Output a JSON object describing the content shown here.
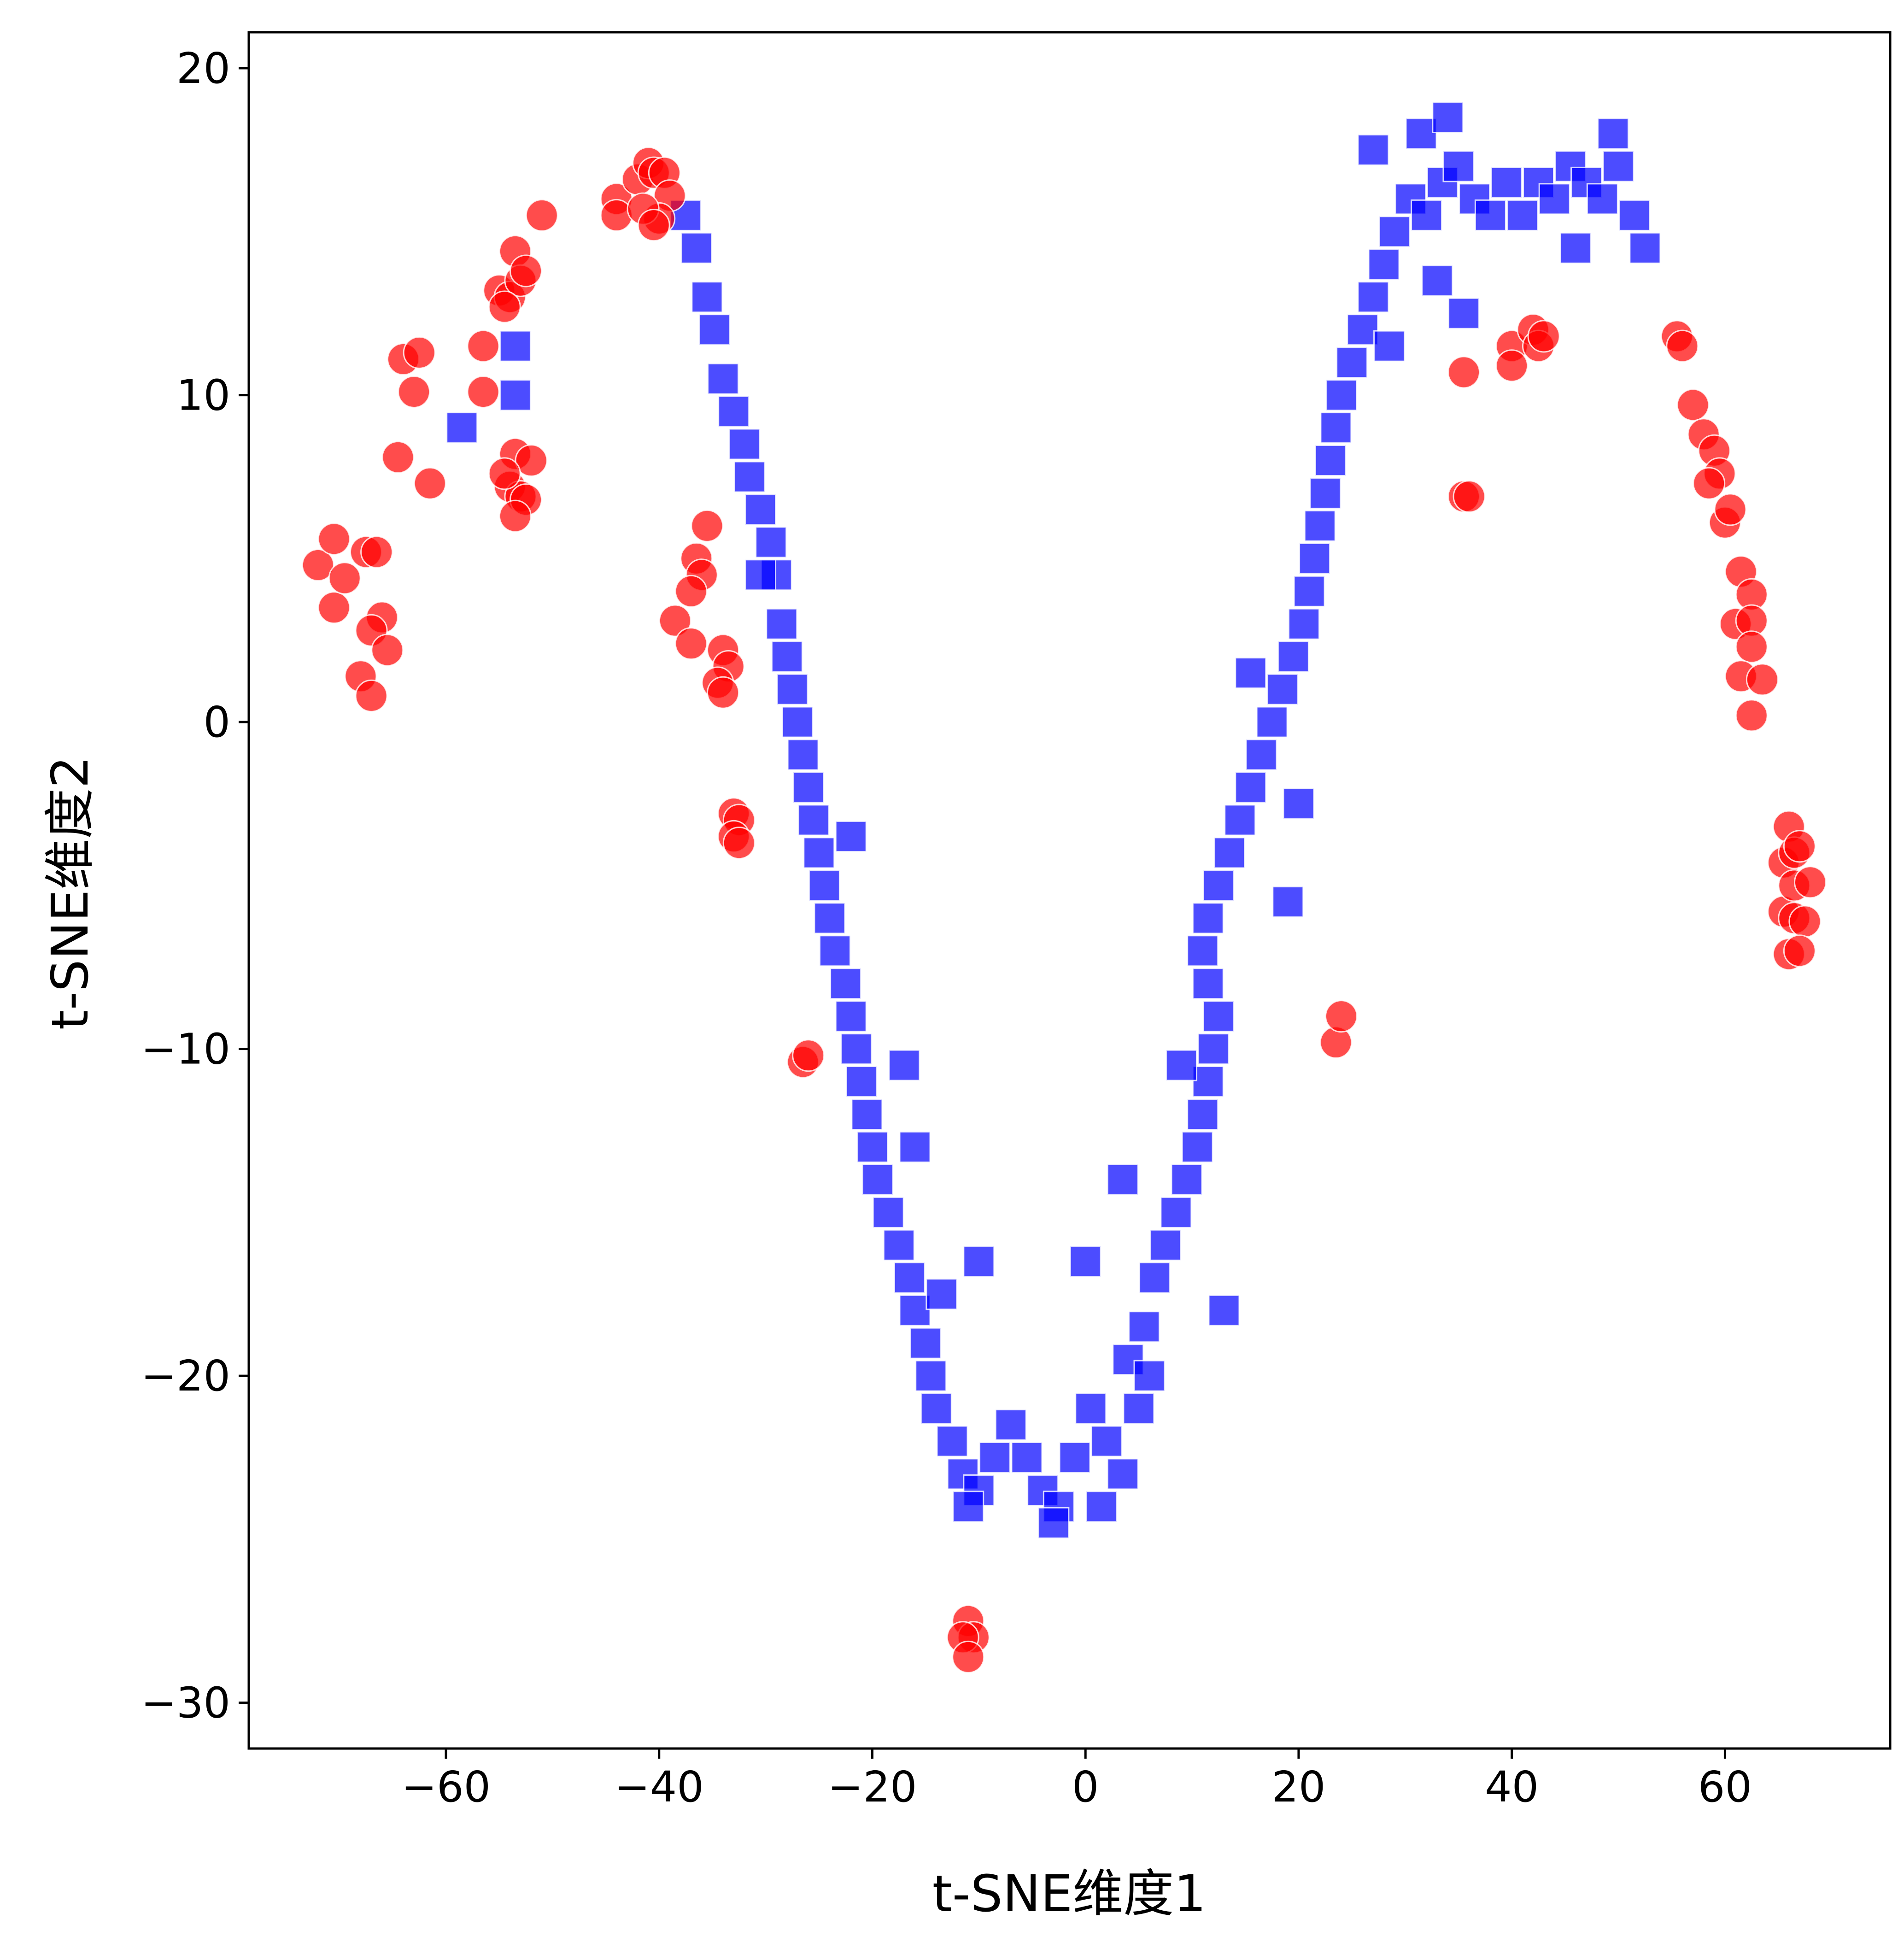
{
  "chart_data": {
    "type": "scatter",
    "title": "",
    "xlabel": "t-SNE维度1",
    "ylabel": "t-SNE维度2",
    "xlim": [
      -78.5,
      75.5
    ],
    "ylim": [
      -31.4,
      21.1
    ],
    "xticks": [
      -60,
      -40,
      -20,
      0,
      20,
      40,
      60
    ],
    "yticks": [
      -30,
      -20,
      -10,
      0,
      10,
      20
    ],
    "xtick_labels": [
      "−60",
      "−40",
      "−20",
      "0",
      "20",
      "40",
      "60"
    ],
    "ytick_labels": [
      "−30",
      "−20",
      "−10",
      "0",
      "10",
      "20"
    ],
    "grid": false,
    "legend": "none",
    "series": [
      {
        "marker": "square",
        "color": "#0000FF",
        "alpha": 0.7,
        "points": [
          [
            -37.5,
            15.5
          ],
          [
            -36.5,
            14.5
          ],
          [
            -35.5,
            13.0
          ],
          [
            -34.8,
            12.0
          ],
          [
            -34.0,
            10.5
          ],
          [
            -33.0,
            9.5
          ],
          [
            -32.0,
            8.5
          ],
          [
            -31.5,
            7.5
          ],
          [
            -30.5,
            6.5
          ],
          [
            -29.5,
            5.5
          ],
          [
            -29.0,
            4.5
          ],
          [
            -28.5,
            3.0
          ],
          [
            -28.0,
            2.0
          ],
          [
            -27.5,
            1.0
          ],
          [
            -27.0,
            0.0
          ],
          [
            -26.5,
            -1.0
          ],
          [
            -26.0,
            -2.0
          ],
          [
            -25.5,
            -3.0
          ],
          [
            -25.0,
            -4.0
          ],
          [
            -24.5,
            -5.0
          ],
          [
            -24.0,
            -6.0
          ],
          [
            -23.5,
            -7.0
          ],
          [
            -22.5,
            -8.0
          ],
          [
            -22.0,
            -9.0
          ],
          [
            -21.5,
            -10.0
          ],
          [
            -21.0,
            -11.0
          ],
          [
            -20.5,
            -12.0
          ],
          [
            -20.0,
            -13.0
          ],
          [
            -19.5,
            -14.0
          ],
          [
            -18.5,
            -15.0
          ],
          [
            -17.5,
            -16.0
          ],
          [
            -16.5,
            -17.0
          ],
          [
            -16.0,
            -18.0
          ],
          [
            -15.0,
            -19.0
          ],
          [
            -14.5,
            -20.0
          ],
          [
            -14.0,
            -21.0
          ],
          [
            -12.5,
            -22.0
          ],
          [
            -11.5,
            -23.0
          ],
          [
            -10.0,
            -23.5
          ],
          [
            -8.5,
            -22.5
          ],
          [
            -7.0,
            -21.5
          ],
          [
            -5.5,
            -22.5
          ],
          [
            -4.0,
            -23.5
          ],
          [
            -2.5,
            -24.0
          ],
          [
            -1.0,
            -22.5
          ],
          [
            0.5,
            -21.0
          ],
          [
            2.0,
            -22.0
          ],
          [
            3.5,
            -23.0
          ],
          [
            5.0,
            -21.0
          ],
          [
            4.0,
            -19.5
          ],
          [
            5.5,
            -18.5
          ],
          [
            6.5,
            -17.0
          ],
          [
            7.5,
            -16.0
          ],
          [
            8.5,
            -15.0
          ],
          [
            9.5,
            -14.0
          ],
          [
            10.5,
            -13.0
          ],
          [
            11.0,
            -12.0
          ],
          [
            11.5,
            -11.0
          ],
          [
            12.0,
            -10.0
          ],
          [
            12.5,
            -9.0
          ],
          [
            11.5,
            -8.0
          ],
          [
            11.0,
            -7.0
          ],
          [
            11.5,
            -6.0
          ],
          [
            12.5,
            -5.0
          ],
          [
            13.5,
            -4.0
          ],
          [
            14.5,
            -3.0
          ],
          [
            15.5,
            -2.0
          ],
          [
            16.5,
            -1.0
          ],
          [
            17.5,
            0.0
          ],
          [
            18.5,
            1.0
          ],
          [
            19.5,
            2.0
          ],
          [
            20.5,
            3.0
          ],
          [
            21.0,
            4.0
          ],
          [
            21.5,
            5.0
          ],
          [
            22.0,
            6.0
          ],
          [
            22.5,
            7.0
          ],
          [
            23.0,
            8.0
          ],
          [
            23.5,
            9.0
          ],
          [
            24.0,
            10.0
          ],
          [
            25.0,
            11.0
          ],
          [
            26.0,
            12.0
          ],
          [
            27.0,
            13.0
          ],
          [
            28.0,
            14.0
          ],
          [
            29.0,
            15.0
          ],
          [
            30.5,
            16.0
          ],
          [
            32.0,
            15.5
          ],
          [
            33.5,
            16.5
          ],
          [
            35.0,
            17.0
          ],
          [
            36.5,
            16.0
          ],
          [
            38.0,
            15.5
          ],
          [
            39.5,
            16.5
          ],
          [
            41.0,
            15.5
          ],
          [
            42.5,
            16.5
          ],
          [
            44.0,
            16.0
          ],
          [
            45.5,
            17.0
          ],
          [
            47.0,
            16.5
          ],
          [
            48.5,
            16.0
          ],
          [
            50.0,
            17.0
          ],
          [
            51.5,
            15.5
          ],
          [
            52.5,
            14.5
          ],
          [
            33.0,
            13.5
          ],
          [
            35.5,
            12.5
          ],
          [
            31.5,
            18.0
          ],
          [
            34.0,
            18.5
          ],
          [
            49.5,
            18.0
          ],
          [
            27.0,
            17.5
          ],
          [
            28.5,
            11.5
          ],
          [
            46.0,
            14.5
          ],
          [
            -17.0,
            -10.5
          ],
          [
            -16.0,
            -13.0
          ],
          [
            -58.5,
            9.0
          ],
          [
            -53.5,
            11.5
          ],
          [
            -53.5,
            10.0
          ],
          [
            0.0,
            -16.5
          ],
          [
            3.5,
            -14.0
          ],
          [
            9.0,
            -10.5
          ],
          [
            -10.0,
            -16.5
          ],
          [
            6.0,
            -20.0
          ],
          [
            19.0,
            -5.5
          ],
          [
            15.5,
            1.5
          ],
          [
            -13.5,
            -17.5
          ],
          [
            -11.0,
            -24.0
          ],
          [
            1.5,
            -24.0
          ],
          [
            -3.0,
            -24.5
          ],
          [
            13.0,
            -18.0
          ],
          [
            20.0,
            -2.5
          ],
          [
            -22.0,
            -3.5
          ],
          [
            -30.5,
            4.5
          ]
        ]
      },
      {
        "marker": "circle",
        "color": "#FF0000",
        "alpha": 0.7,
        "points": [
          [
            -72.0,
            4.8
          ],
          [
            -70.5,
            5.6
          ],
          [
            -70.5,
            3.5
          ],
          [
            -69.5,
            4.4
          ],
          [
            -67.5,
            5.2
          ],
          [
            -66.5,
            5.2
          ],
          [
            -66.0,
            3.2
          ],
          [
            -67.0,
            2.8
          ],
          [
            -65.5,
            2.2
          ],
          [
            -68.0,
            1.4
          ],
          [
            -67.0,
            0.8
          ],
          [
            -64.5,
            8.1
          ],
          [
            -61.5,
            7.3
          ],
          [
            -64.0,
            11.1
          ],
          [
            -62.5,
            11.3
          ],
          [
            -63.0,
            10.1
          ],
          [
            -56.5,
            11.5
          ],
          [
            -55.0,
            13.2
          ],
          [
            -54.0,
            13.0
          ],
          [
            -53.5,
            14.4
          ],
          [
            -53.0,
            13.5
          ],
          [
            -52.5,
            13.8
          ],
          [
            -56.5,
            10.1
          ],
          [
            -54.5,
            12.7
          ],
          [
            -53.5,
            8.2
          ],
          [
            -52.0,
            8.0
          ],
          [
            -54.0,
            7.2
          ],
          [
            -53.0,
            6.9
          ],
          [
            -52.5,
            6.8
          ],
          [
            -53.5,
            6.3
          ],
          [
            -54.5,
            7.6
          ],
          [
            -51.0,
            15.5
          ],
          [
            -44.0,
            16.0
          ],
          [
            -44.0,
            15.5
          ],
          [
            -42.0,
            16.6
          ],
          [
            -41.0,
            17.1
          ],
          [
            -40.5,
            16.8
          ],
          [
            -39.5,
            16.8
          ],
          [
            -39.0,
            16.1
          ],
          [
            -40.0,
            15.4
          ],
          [
            -41.5,
            15.7
          ],
          [
            -40.5,
            15.2
          ],
          [
            -36.5,
            5.0
          ],
          [
            -35.5,
            6.0
          ],
          [
            -36.0,
            4.5
          ],
          [
            -37.0,
            4.0
          ],
          [
            -38.5,
            3.1
          ],
          [
            -37.0,
            2.4
          ],
          [
            -34.0,
            2.2
          ],
          [
            -33.5,
            1.7
          ],
          [
            -34.5,
            1.2
          ],
          [
            -34.0,
            0.9
          ],
          [
            -33.0,
            -2.8
          ],
          [
            -32.5,
            -3.0
          ],
          [
            -33.0,
            -3.5
          ],
          [
            -32.5,
            -3.7
          ],
          [
            -26.5,
            -10.4
          ],
          [
            -26.0,
            -10.2
          ],
          [
            -11.0,
            -27.5
          ],
          [
            -10.5,
            -28.0
          ],
          [
            -11.5,
            -28.0
          ],
          [
            -11.0,
            -28.6
          ],
          [
            23.5,
            -9.8
          ],
          [
            24.0,
            -9.0
          ],
          [
            35.5,
            10.7
          ],
          [
            35.5,
            6.9
          ],
          [
            36.0,
            6.9
          ],
          [
            40.0,
            11.5
          ],
          [
            40.0,
            10.9
          ],
          [
            42.0,
            12.0
          ],
          [
            42.5,
            11.5
          ],
          [
            43.0,
            11.8
          ],
          [
            55.5,
            11.8
          ],
          [
            56.0,
            11.5
          ],
          [
            57.0,
            9.7
          ],
          [
            58.0,
            8.8
          ],
          [
            59.0,
            8.3
          ],
          [
            59.5,
            7.6
          ],
          [
            60.0,
            6.1
          ],
          [
            60.5,
            6.5
          ],
          [
            58.5,
            7.3
          ],
          [
            61.5,
            4.6
          ],
          [
            62.5,
            3.9
          ],
          [
            61.0,
            3.0
          ],
          [
            62.5,
            3.1
          ],
          [
            62.5,
            2.3
          ],
          [
            61.5,
            1.4
          ],
          [
            63.5,
            1.3
          ],
          [
            62.5,
            0.2
          ],
          [
            66.0,
            -3.2
          ],
          [
            65.5,
            -4.3
          ],
          [
            66.5,
            -4.0
          ],
          [
            67.0,
            -3.8
          ],
          [
            65.5,
            -5.8
          ],
          [
            66.5,
            -5.0
          ],
          [
            68.0,
            -4.9
          ],
          [
            66.5,
            -6.0
          ],
          [
            67.5,
            -6.1
          ],
          [
            66.0,
            -7.1
          ],
          [
            67.0,
            -7.0
          ]
        ]
      }
    ]
  }
}
